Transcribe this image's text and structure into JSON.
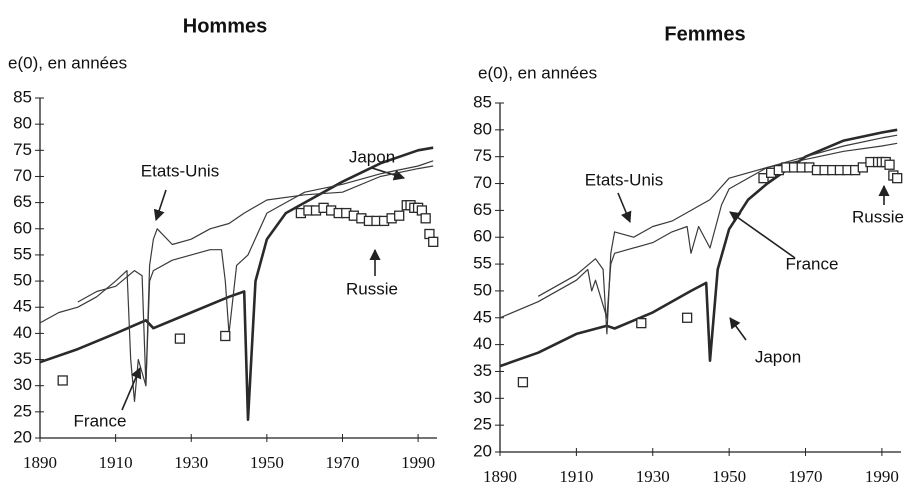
{
  "chart_data": [
    {
      "type": "line",
      "title": "Hommes",
      "y_label": "e(0), en années",
      "xlim": [
        1890,
        1995
      ],
      "xticks": [
        1890,
        1910,
        1930,
        1950,
        1970,
        1990
      ],
      "ylim": [
        20,
        85
      ],
      "yticks": [
        20,
        25,
        30,
        35,
        40,
        45,
        50,
        55,
        60,
        65,
        70,
        75,
        80,
        85
      ],
      "series": [
        {
          "name": "Japon",
          "color": "#2a2a2a",
          "line_width": 2.6,
          "x": [
            1890,
            1900,
            1910,
            1918,
            1920,
            1930,
            1940,
            1944,
            1945,
            1947,
            1950,
            1955,
            1960,
            1970,
            1980,
            1990,
            1994
          ],
          "values": [
            34.5,
            37,
            40,
            42.5,
            41,
            44,
            47,
            48,
            23.5,
            50,
            58,
            63,
            65,
            69,
            72.5,
            75,
            75.5
          ]
        },
        {
          "name": "France",
          "color": "#3a3a3a",
          "line_width": 1.2,
          "x": [
            1890,
            1895,
            1900,
            1905,
            1910,
            1913,
            1914,
            1915,
            1916,
            1918,
            1919,
            1920,
            1925,
            1930,
            1935,
            1938,
            1939,
            1940,
            1942,
            1945,
            1950,
            1955,
            1960,
            1970,
            1980,
            1990,
            1994
          ],
          "values": [
            42,
            44,
            45,
            47,
            50,
            52,
            35,
            27,
            35,
            30,
            50,
            52,
            54,
            55,
            56,
            56,
            50,
            40,
            53,
            55,
            63,
            65,
            67,
            68.5,
            70.5,
            72,
            73
          ]
        },
        {
          "name": "Etats-Unis",
          "color": "#3a3a3a",
          "line_width": 1.2,
          "x": [
            1900,
            1905,
            1910,
            1915,
            1917,
            1918,
            1919,
            1920,
            1921,
            1925,
            1930,
            1935,
            1940,
            1944,
            1950,
            1960,
            1970,
            1980,
            1990,
            1994
          ],
          "values": [
            46,
            48,
            49,
            52,
            51,
            30,
            53,
            58,
            60,
            57,
            58,
            60,
            61,
            63,
            65.5,
            66.5,
            67,
            70,
            71.5,
            72
          ]
        },
        {
          "name": "Russie",
          "color": "#2a2a2a",
          "marker": "square",
          "x": [
            1896,
            1927,
            1939,
            1959,
            1961,
            1963,
            1965,
            1967,
            1969,
            1971,
            1973,
            1975,
            1977,
            1979,
            1981,
            1983,
            1985,
            1987,
            1988,
            1989,
            1990,
            1991,
            1992,
            1993,
            1994
          ],
          "values": [
            31,
            39,
            39.5,
            63,
            63.5,
            63.5,
            64,
            63.5,
            63,
            63,
            62.5,
            62,
            61.5,
            61.5,
            61.5,
            62,
            62.5,
            64.5,
            64.5,
            64,
            64,
            63.5,
            62,
            59,
            57.5
          ]
        }
      ]
    },
    {
      "type": "line",
      "title": "Femmes",
      "y_label": "e(0), en années",
      "xlim": [
        1890,
        1995
      ],
      "xticks": [
        1890,
        1910,
        1930,
        1950,
        1970,
        1990
      ],
      "ylim": [
        20,
        85
      ],
      "yticks": [
        20,
        25,
        30,
        35,
        40,
        45,
        50,
        55,
        60,
        65,
        70,
        75,
        80,
        85
      ],
      "series": [
        {
          "name": "Japon",
          "color": "#2a2a2a",
          "line_width": 2.6,
          "x": [
            1890,
            1900,
            1910,
            1918,
            1920,
            1930,
            1940,
            1944,
            1945,
            1947,
            1950,
            1955,
            1960,
            1970,
            1980,
            1990,
            1994
          ],
          "values": [
            36,
            38.5,
            42,
            43.5,
            43,
            46,
            50,
            51.5,
            37,
            54,
            61.5,
            67,
            70,
            75,
            78,
            79.5,
            80
          ]
        },
        {
          "name": "France",
          "color": "#3a3a3a",
          "line_width": 1.2,
          "x": [
            1890,
            1900,
            1910,
            1913,
            1914,
            1915,
            1918,
            1919,
            1920,
            1930,
            1935,
            1939,
            1940,
            1942,
            1945,
            1948,
            1950,
            1960,
            1970,
            1980,
            1990,
            1994
          ],
          "values": [
            45,
            48,
            52,
            54,
            50,
            52,
            45,
            55,
            57,
            59,
            61,
            62,
            57,
            62,
            58,
            66,
            69,
            73,
            75,
            77,
            78.5,
            79
          ]
        },
        {
          "name": "Etats-Unis",
          "color": "#3a3a3a",
          "line_width": 1.2,
          "x": [
            1900,
            1910,
            1915,
            1917,
            1918,
            1919,
            1920,
            1925,
            1930,
            1935,
            1940,
            1945,
            1950,
            1960,
            1970,
            1980,
            1990,
            1994
          ],
          "values": [
            49,
            53,
            56,
            54,
            42,
            57,
            61,
            60,
            62,
            63,
            65,
            67,
            71,
            73,
            74.5,
            76,
            77,
            77.5
          ]
        },
        {
          "name": "Russie",
          "color": "#2a2a2a",
          "marker": "square",
          "x": [
            1896,
            1927,
            1939,
            1959,
            1961,
            1963,
            1965,
            1967,
            1969,
            1971,
            1973,
            1975,
            1977,
            1979,
            1981,
            1983,
            1985,
            1987,
            1989,
            1990,
            1991,
            1992,
            1993,
            1994
          ],
          "values": [
            33,
            44,
            45,
            71,
            72,
            72.5,
            73,
            73,
            73,
            73,
            72.5,
            72.5,
            72.5,
            72.5,
            72.5,
            72.5,
            73,
            74,
            74,
            74,
            74,
            73.5,
            71.5,
            71
          ]
        }
      ]
    }
  ]
}
